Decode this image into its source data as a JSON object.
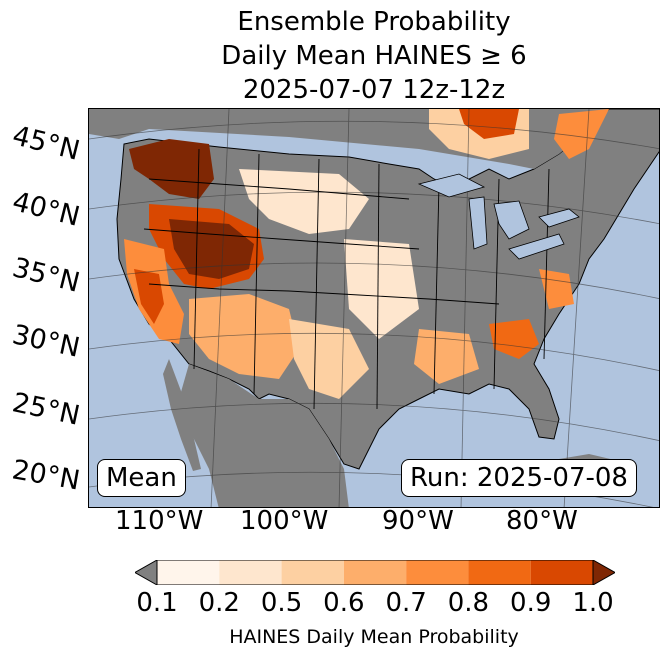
{
  "title": {
    "line1": "Ensemble Probability",
    "line2": "Daily Mean HAINES ≥ 6",
    "line3": "2025-07-07 12z-12z"
  },
  "map": {
    "ocean_color": "#b0c4de",
    "land_color": "#808080",
    "lat_labels": [
      "45°N",
      "40°N",
      "35°N",
      "30°N",
      "25°N",
      "20°N"
    ],
    "lon_labels": [
      "110°W",
      "100°W",
      "90°W",
      "80°W"
    ]
  },
  "annotations": {
    "stat": "Mean",
    "run": "Run: 2025-07-08"
  },
  "colorbar": {
    "label": "HAINES Daily Mean Probability",
    "ticks": [
      "0.1",
      "0.2",
      "0.5",
      "0.6",
      "0.7",
      "0.8",
      "0.9",
      "1.0"
    ],
    "under_color": "#808080",
    "over_color": "#7f2704",
    "colors": [
      "#fff5eb",
      "#fee6ce",
      "#fdd0a2",
      "#fdae6b",
      "#fd8d3c",
      "#f16913",
      "#d94801"
    ]
  }
}
